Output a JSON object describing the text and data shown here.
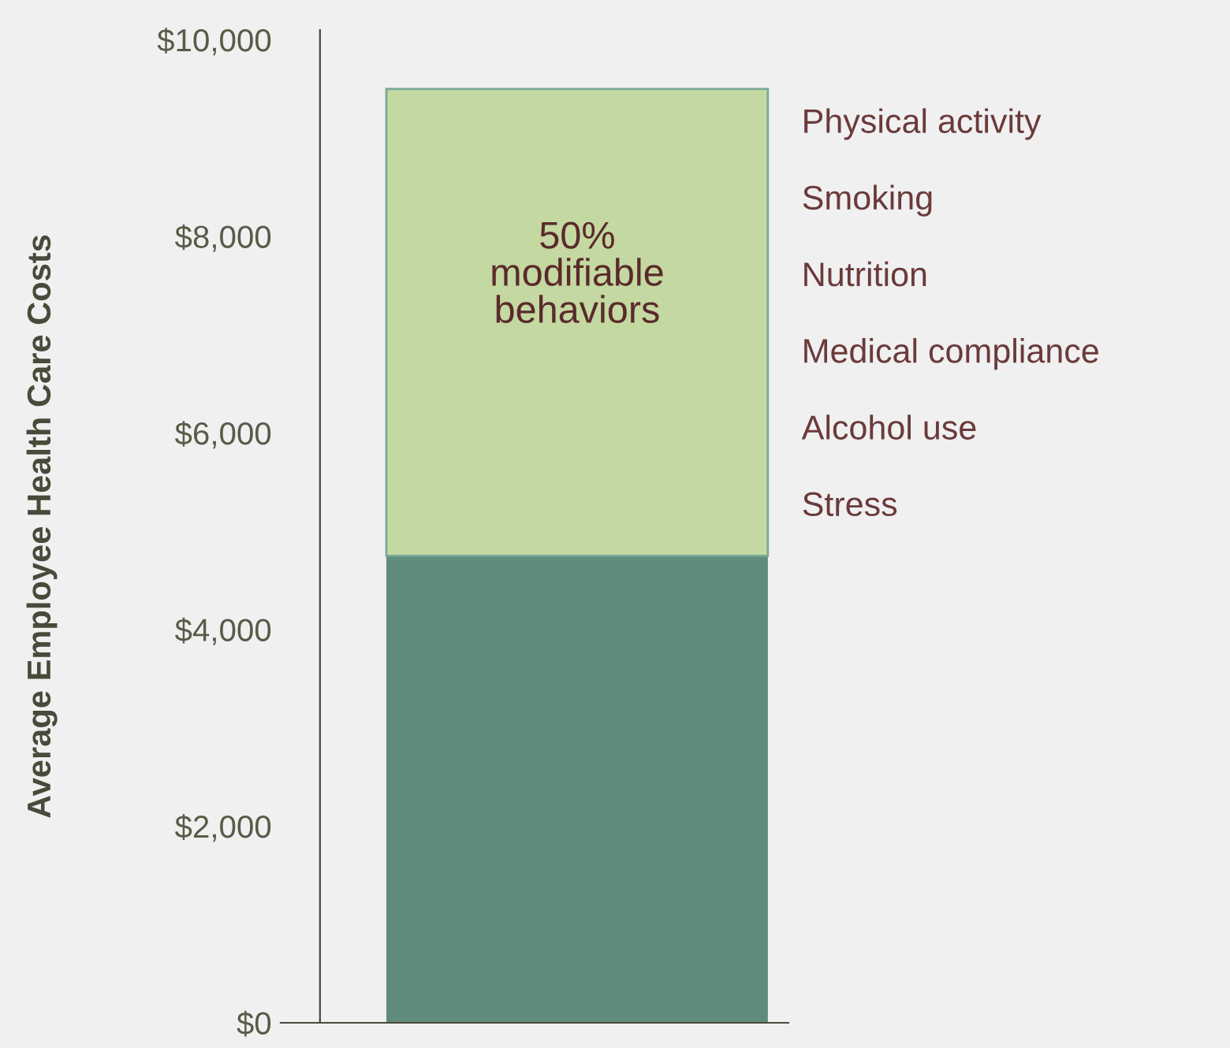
{
  "chart_data": {
    "type": "bar",
    "stacked": true,
    "categories": [
      null
    ],
    "ylabel": "Average Employee Health Care Costs",
    "series": [
      {
        "color": "#5f8c7c",
        "values": [
          4750
        ]
      },
      {
        "color": "#c4d8a2",
        "values": [
          4750
        ]
      }
    ],
    "ylim": [
      0,
      10100
    ],
    "yticks": [
      {
        "value": 0,
        "label": "$0"
      },
      {
        "value": 2000,
        "label": "$2,000"
      },
      {
        "value": 4000,
        "label": "$4,000"
      },
      {
        "value": 6000,
        "label": "$6,000"
      },
      {
        "value": 8000,
        "label": "$8,000"
      },
      {
        "value": 10000,
        "label": "$10,000"
      }
    ],
    "grid": false,
    "legend": false,
    "annotations": [
      "50%\nmodifiable\nbehaviors",
      "Physical activity",
      "Smoking",
      "Nutrition",
      "Medical compliance",
      "Alcohol use",
      "Stress"
    ]
  }
}
